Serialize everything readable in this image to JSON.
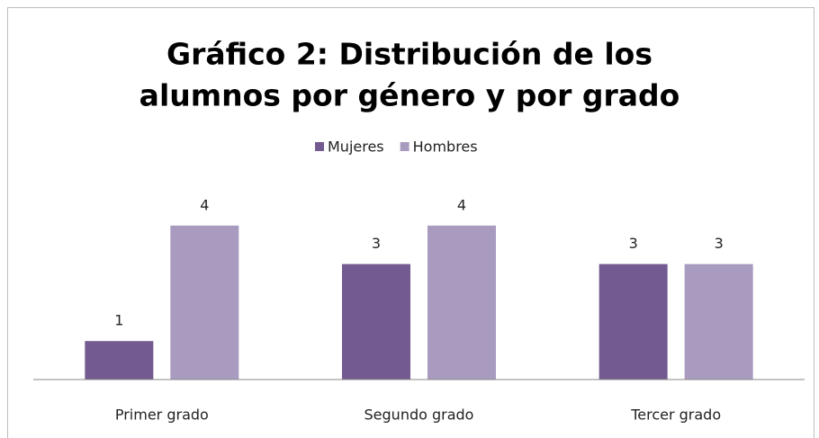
{
  "chart_data": {
    "type": "bar",
    "title": [
      "Gráfico 2: Distribución de los",
      "alumnos por género y por grado"
    ],
    "categories": [
      "Primer grado",
      "Segundo grado",
      "Tercer grado"
    ],
    "series": [
      {
        "name": "Mujeres",
        "color": "#735a91",
        "values": [
          1,
          3,
          3
        ]
      },
      {
        "name": "Hombres",
        "color": "#a99bc0",
        "values": [
          4,
          4,
          3
        ]
      }
    ],
    "ylim": [
      0,
      5
    ],
    "legend": "top",
    "data_labels": true
  }
}
